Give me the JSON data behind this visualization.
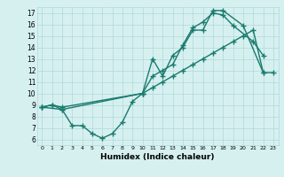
{
  "line1": {
    "x": [
      0,
      1,
      2,
      10,
      11,
      12,
      13,
      14,
      15,
      16,
      17,
      18,
      20,
      22
    ],
    "y": [
      8.8,
      9.0,
      8.8,
      10.0,
      13.0,
      11.5,
      13.3,
      14.0,
      15.5,
      15.5,
      17.2,
      17.2,
      15.9,
      11.8
    ]
  },
  "line2": {
    "x": [
      0,
      1,
      2,
      10,
      11,
      12,
      13,
      14,
      15,
      16,
      17,
      18,
      19,
      21,
      22
    ],
    "y": [
      8.8,
      9.0,
      8.6,
      10.0,
      11.5,
      12.0,
      12.5,
      14.2,
      15.7,
      16.2,
      17.0,
      16.8,
      15.9,
      14.5,
      13.3
    ]
  },
  "line3": {
    "x": [
      0,
      2,
      3,
      4,
      5,
      6,
      7,
      8,
      9,
      10,
      11,
      12,
      13,
      14,
      15,
      16,
      17,
      18,
      19,
      20,
      21,
      22,
      23
    ],
    "y": [
      8.8,
      8.6,
      7.2,
      7.2,
      6.5,
      6.1,
      6.5,
      7.5,
      9.3,
      10.0,
      10.5,
      11.0,
      11.5,
      12.0,
      12.5,
      13.0,
      13.5,
      14.0,
      14.5,
      15.0,
      15.5,
      11.8,
      11.8
    ]
  },
  "color": "#1a7a6e",
  "bg_color": "#d6f0f0",
  "grid_color": "#b0d8d8",
  "xlabel": "Humidex (Indice chaleur)",
  "xlim": [
    -0.5,
    23.5
  ],
  "ylim": [
    5.5,
    17.5
  ],
  "yticks": [
    6,
    7,
    8,
    9,
    10,
    11,
    12,
    13,
    14,
    15,
    16,
    17
  ],
  "xticks": [
    0,
    1,
    2,
    3,
    4,
    5,
    6,
    7,
    8,
    9,
    10,
    11,
    12,
    13,
    14,
    15,
    16,
    17,
    18,
    19,
    20,
    21,
    22,
    23
  ],
  "marker": "+",
  "markersize": 4,
  "linewidth": 1.0
}
